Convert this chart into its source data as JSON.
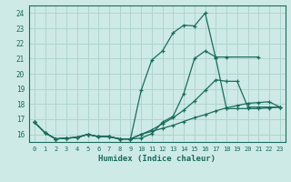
{
  "xlabel": "Humidex (Indice chaleur)",
  "ylabel": "",
  "bg_color": "#ceeae6",
  "grid_color": "#afd4cf",
  "line_color": "#1a6b5e",
  "xlim": [
    -0.5,
    23.5
  ],
  "ylim": [
    15.5,
    24.5
  ],
  "yticks": [
    16,
    17,
    18,
    19,
    20,
    21,
    22,
    23,
    24
  ],
  "xticks": [
    0,
    1,
    2,
    3,
    4,
    5,
    6,
    7,
    8,
    9,
    10,
    11,
    12,
    13,
    14,
    15,
    16,
    17,
    18,
    19,
    20,
    21,
    22,
    23
  ],
  "series": [
    {
      "x": [
        0,
        1,
        2,
        3,
        4,
        5,
        6,
        7,
        8,
        9,
        10,
        11,
        12,
        13,
        14,
        15,
        16,
        17,
        18,
        21
      ],
      "y": [
        16.8,
        16.1,
        15.7,
        15.75,
        15.8,
        16.0,
        15.85,
        15.85,
        15.7,
        15.7,
        15.75,
        16.05,
        16.8,
        17.2,
        18.7,
        21.0,
        21.5,
        21.1,
        21.1,
        21.1
      ]
    },
    {
      "x": [
        0,
        1,
        2,
        3,
        4,
        5,
        6,
        7,
        8,
        9,
        10,
        11,
        12,
        13,
        14,
        15,
        16,
        17,
        18,
        19,
        20,
        21,
        22,
        23
      ],
      "y": [
        16.8,
        16.1,
        15.7,
        15.75,
        15.8,
        16.0,
        15.85,
        15.85,
        15.7,
        15.7,
        18.9,
        20.9,
        21.5,
        22.7,
        23.2,
        23.15,
        24.0,
        21.0,
        17.7,
        17.7,
        17.7,
        17.7,
        17.75,
        17.8
      ]
    },
    {
      "x": [
        0,
        1,
        2,
        3,
        4,
        5,
        6,
        7,
        8,
        9,
        10,
        11,
        12,
        13,
        14,
        15,
        16,
        17,
        18,
        19,
        20,
        21,
        22,
        23
      ],
      "y": [
        16.8,
        16.1,
        15.7,
        15.75,
        15.8,
        16.0,
        15.85,
        15.85,
        15.7,
        15.7,
        16.0,
        16.3,
        16.7,
        17.1,
        17.6,
        18.2,
        18.9,
        19.6,
        19.5,
        19.5,
        17.8,
        17.8,
        17.8,
        17.8
      ]
    },
    {
      "x": [
        0,
        1,
        2,
        3,
        4,
        5,
        6,
        7,
        8,
        9,
        10,
        11,
        12,
        13,
        14,
        15,
        16,
        17,
        18,
        19,
        20,
        21,
        22,
        23
      ],
      "y": [
        16.8,
        16.1,
        15.7,
        15.75,
        15.8,
        16.0,
        15.85,
        15.85,
        15.7,
        15.7,
        16.0,
        16.2,
        16.4,
        16.6,
        16.85,
        17.1,
        17.3,
        17.55,
        17.75,
        17.9,
        18.05,
        18.1,
        18.15,
        17.8
      ]
    }
  ]
}
